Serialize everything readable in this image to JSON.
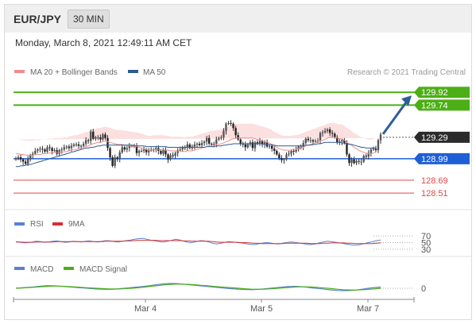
{
  "header": {
    "pair": "EUR/JPY",
    "timeframe": "30 MIN",
    "datetime": "Monday, March 8, 2021 12:49:11 AM CET"
  },
  "legend": {
    "ma20": "MA 20 + Bollinger Bands",
    "ma50": "MA 50",
    "credit": "Research © 2021 Trading Central",
    "colors": {
      "ma20": "#f28c8c",
      "ma50": "#2f5b96",
      "green": "#4caf16",
      "blue": "#1f5fd6",
      "red": "#e04848",
      "arrow": "#2c5e9e"
    }
  },
  "chart_data": [
    {
      "type": "candlestick",
      "panel": "price",
      "ylim": [
        128.3,
        130.1
      ],
      "x_ticks": [
        "Mar 4",
        "Mar 5",
        "Mar 7"
      ],
      "levels": [
        {
          "label": "129.92",
          "value": 129.92,
          "kind": "resistance"
        },
        {
          "label": "129.74",
          "value": 129.74,
          "kind": "resistance"
        },
        {
          "label": "129.29",
          "value": 129.29,
          "kind": "last"
        },
        {
          "label": "128.99",
          "value": 128.99,
          "kind": "pivot"
        },
        {
          "label": "128.69",
          "value": 128.69,
          "kind": "support"
        },
        {
          "label": "128.51",
          "value": 128.51,
          "kind": "support"
        }
      ],
      "arrow": {
        "from": 129.29,
        "to": 129.92
      },
      "close": [
        129.0,
        129.01,
        128.98,
        128.95,
        128.92,
        128.99,
        129.04,
        129.06,
        129.1,
        129.12,
        129.13,
        129.12,
        129.09,
        129.15,
        129.14,
        129.1,
        129.11,
        129.06,
        129.11,
        129.12,
        129.15,
        129.16,
        129.14,
        129.17,
        129.19,
        129.19,
        129.17,
        129.17,
        129.2,
        129.25,
        129.24,
        129.37,
        129.27,
        129.29,
        129.29,
        129.26,
        129.33,
        129.28,
        129.14,
        129.01,
        128.89,
        129.01,
        128.99,
        129.08,
        129.15,
        129.12,
        129.14,
        129.17,
        129.17,
        129.17,
        129.07,
        129.1,
        129.1,
        129.12,
        129.08,
        129.11,
        129.11,
        129.12,
        129.14,
        129.1,
        129.06,
        129.11,
        129.05,
        128.98,
        129.04,
        129.03,
        129.07,
        129.11,
        129.12,
        129.15,
        129.15,
        129.19,
        129.14,
        129.16,
        129.19,
        129.2,
        129.18,
        129.21,
        129.23,
        129.28,
        129.2,
        129.19,
        129.2,
        129.26,
        129.28,
        129.29,
        129.38,
        129.48,
        129.49,
        129.48,
        129.42,
        129.32,
        129.26,
        129.2,
        129.19,
        129.15,
        129.19,
        129.22,
        129.14,
        129.22,
        129.2,
        129.24,
        129.19,
        129.22,
        129.16,
        129.17,
        129.13,
        129.1,
        129.05,
        129.0,
        128.97,
        128.98,
        129.05,
        129.06,
        129.1,
        129.09,
        129.12,
        129.16,
        129.16,
        129.21,
        129.27,
        129.25,
        129.25,
        129.23,
        129.24,
        129.24,
        129.35,
        129.36,
        129.38,
        129.4,
        129.35,
        129.34,
        129.29,
        129.22,
        129.23,
        129.25,
        129.21,
        129.05,
        128.93,
        128.98,
        128.93,
        128.96,
        128.95,
        128.95,
        129.03,
        129.02,
        129.07,
        129.12,
        129.13,
        129.11,
        129.25,
        129.33
      ],
      "ma20": [
        129.06,
        129.06,
        129.05,
        129.05,
        129.04,
        129.04,
        129.04,
        129.04,
        129.05,
        129.05,
        129.05,
        129.06,
        129.06,
        129.07,
        129.07,
        129.07,
        129.08,
        129.08,
        129.08,
        129.08,
        129.09,
        129.09,
        129.1,
        129.11,
        129.12,
        129.12,
        129.13,
        129.14,
        129.15,
        129.16,
        129.17,
        129.19,
        129.2,
        129.21,
        129.22,
        129.22,
        129.23,
        129.24,
        129.23,
        129.22,
        129.21,
        129.2,
        129.19,
        129.19,
        129.19,
        129.18,
        129.18,
        129.17,
        129.17,
        129.16,
        129.16,
        129.15,
        129.14,
        129.13,
        129.12,
        129.11,
        129.11,
        129.12,
        129.12,
        129.12,
        129.12,
        129.12,
        129.11,
        129.11,
        129.1,
        129.1,
        129.1,
        129.1,
        129.1,
        129.09,
        129.09,
        129.1,
        129.1,
        129.1,
        129.11,
        129.12,
        129.13,
        129.14,
        129.15,
        129.16,
        129.17,
        129.18,
        129.18,
        129.19,
        129.19,
        129.2,
        129.21,
        129.23,
        129.24,
        129.26,
        129.27,
        129.28,
        129.28,
        129.28,
        129.28,
        129.28,
        129.28,
        129.28,
        129.28,
        129.27,
        129.26,
        129.25,
        129.24,
        129.23,
        129.22,
        129.21,
        129.19,
        129.17,
        129.15,
        129.13,
        129.12,
        129.11,
        129.11,
        129.11,
        129.11,
        129.12,
        129.12,
        129.13,
        129.14,
        129.15,
        129.17,
        129.18,
        129.19,
        129.2,
        129.21,
        129.23,
        129.24,
        129.25,
        129.26,
        129.28,
        129.29,
        129.29,
        129.29,
        129.28,
        129.27,
        129.27,
        129.25,
        129.22,
        129.2,
        129.18,
        129.15,
        129.13,
        129.11,
        129.09,
        129.08,
        129.07,
        129.06,
        129.06,
        129.07,
        129.08
      ],
      "ma50": [
        128.88,
        128.88,
        128.89,
        128.89,
        128.9,
        128.91,
        128.91,
        128.92,
        128.93,
        128.94,
        128.95,
        128.96,
        128.97,
        128.98,
        128.99,
        129.0,
        129.01,
        129.02,
        129.03,
        129.04,
        129.05,
        129.06,
        129.07,
        129.08,
        129.09,
        129.1,
        129.11,
        129.12,
        129.13,
        129.14,
        129.14,
        129.15,
        129.15,
        129.16,
        129.17,
        129.17,
        129.18,
        129.18,
        129.18,
        129.18,
        129.18,
        129.18,
        129.18,
        129.18,
        129.18,
        129.18,
        129.18,
        129.18,
        129.18,
        129.17,
        129.17,
        129.17,
        129.17,
        129.17,
        129.16,
        129.16,
        129.16,
        129.16,
        129.16,
        129.16,
        129.16,
        129.16,
        129.16,
        129.15,
        129.15,
        129.15,
        129.15,
        129.15,
        129.15,
        129.15,
        129.15,
        129.15,
        129.15,
        129.15,
        129.15,
        129.15,
        129.15,
        129.15,
        129.15,
        129.16,
        129.16,
        129.16,
        129.16,
        129.17,
        129.17,
        129.17,
        129.18,
        129.18,
        129.19,
        129.19,
        129.2,
        129.2,
        129.2,
        129.2,
        129.2,
        129.2,
        129.2,
        129.2,
        129.2,
        129.2,
        129.2,
        129.2,
        129.2,
        129.19,
        129.19,
        129.19,
        129.18,
        129.18,
        129.17,
        129.17,
        129.17,
        129.17,
        129.17,
        129.17,
        129.17,
        129.17,
        129.17,
        129.17,
        129.17,
        129.17,
        129.18,
        129.18,
        129.18,
        129.19,
        129.19,
        129.2,
        129.2,
        129.21,
        129.22,
        129.22,
        129.22,
        129.22,
        129.22,
        129.22,
        129.22,
        129.21,
        129.21,
        129.2,
        129.19,
        129.19,
        129.18,
        129.17,
        129.16,
        129.15,
        129.15,
        129.14,
        129.14,
        129.14,
        129.14,
        129.14
      ],
      "bb_width": 0.2
    },
    {
      "type": "line",
      "panel": "rsi",
      "ylim": [
        20,
        80
      ],
      "y_ticks": [
        30,
        50,
        70
      ],
      "series": [
        {
          "name": "RSI",
          "color": "#5a7fd6",
          "values": [
            53,
            51,
            49,
            50,
            52,
            54,
            53,
            51,
            52,
            54,
            55,
            53,
            51,
            52,
            54,
            53,
            52,
            54,
            55,
            53,
            52,
            54,
            56,
            55,
            53,
            52,
            54,
            56,
            58,
            60,
            62,
            63,
            60,
            57,
            55,
            53,
            52,
            54,
            57,
            60,
            58,
            54,
            51,
            50,
            53,
            56,
            55,
            52,
            48,
            46,
            48,
            51,
            53,
            52,
            50,
            49,
            47,
            45,
            44,
            46,
            48,
            50,
            49,
            47,
            46,
            48,
            50,
            52,
            51,
            49,
            47,
            45,
            44,
            46,
            49,
            52,
            54,
            53,
            51,
            49,
            47,
            45,
            43,
            42,
            44,
            47,
            50,
            53,
            56,
            58
          ]
        },
        {
          "name": "9MA",
          "color": "#d63030",
          "values": [
            52,
            52,
            51,
            51,
            51,
            52,
            52,
            52,
            52,
            52,
            53,
            53,
            53,
            53,
            53,
            53,
            53,
            53,
            53,
            53,
            53,
            53,
            54,
            54,
            54,
            54,
            54,
            55,
            55,
            56,
            57,
            57,
            57,
            57,
            57,
            56,
            56,
            56,
            56,
            56,
            56,
            55,
            55,
            54,
            54,
            54,
            54,
            54,
            53,
            52,
            51,
            51,
            51,
            51,
            51,
            50,
            50,
            49,
            48,
            48,
            47,
            47,
            47,
            47,
            47,
            47,
            48,
            48,
            48,
            48,
            48,
            48,
            47,
            47,
            47,
            48,
            48,
            49,
            49,
            49,
            49,
            48,
            48,
            47,
            47,
            47,
            47,
            47,
            48,
            49
          ]
        }
      ]
    },
    {
      "type": "line",
      "panel": "macd",
      "ylim": [
        -1,
        1
      ],
      "y_ticks": [
        0
      ],
      "series": [
        {
          "name": "MACD",
          "color": "#5a7fd6",
          "values": [
            0.0,
            0.04,
            0.08,
            0.12,
            0.18,
            0.22,
            0.21,
            0.18,
            0.14,
            0.1,
            0.06,
            0.02,
            -0.02,
            -0.06,
            -0.08,
            -0.09,
            -0.07,
            -0.03,
            0.02,
            0.07,
            0.12,
            0.18,
            0.25,
            0.32,
            0.38,
            0.4,
            0.39,
            0.35,
            0.3,
            0.25,
            0.2,
            0.15,
            0.1,
            0.05,
            0.0,
            -0.04,
            -0.08,
            -0.1,
            -0.12,
            -0.1,
            -0.06,
            -0.01,
            0.04,
            0.09,
            0.14,
            0.16,
            0.14,
            0.09,
            0.03,
            -0.02,
            -0.08,
            -0.14,
            -0.18,
            -0.2,
            -0.19,
            -0.15,
            -0.08,
            0.0,
            0.06,
            0.1
          ]
        },
        {
          "name": "MACD Signal",
          "color": "#4caf16",
          "values": [
            0.01,
            0.03,
            0.06,
            0.09,
            0.13,
            0.16,
            0.18,
            0.18,
            0.16,
            0.13,
            0.1,
            0.06,
            0.03,
            0.0,
            -0.03,
            -0.05,
            -0.06,
            -0.05,
            -0.02,
            0.01,
            0.06,
            0.11,
            0.17,
            0.23,
            0.29,
            0.33,
            0.35,
            0.35,
            0.33,
            0.29,
            0.25,
            0.21,
            0.16,
            0.12,
            0.08,
            0.04,
            0.0,
            -0.04,
            -0.07,
            -0.08,
            -0.07,
            -0.05,
            -0.02,
            0.02,
            0.06,
            0.1,
            0.12,
            0.12,
            0.1,
            0.06,
            0.02,
            -0.03,
            -0.08,
            -0.12,
            -0.14,
            -0.15,
            -0.13,
            -0.09,
            -0.05,
            -0.01
          ]
        }
      ],
      "legend": {
        "macd": "MACD",
        "signal": "MACD Signal"
      }
    }
  ]
}
